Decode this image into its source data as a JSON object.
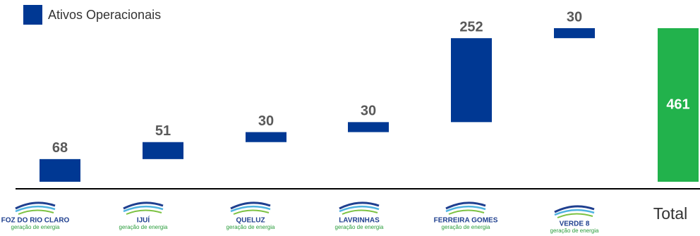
{
  "chart_data": {
    "type": "waterfall",
    "legend": "Ativos Operacionais",
    "categories": [
      "FOZ DO RIO CLARO",
      "IJUÍ",
      "QUELUZ",
      "LAVRINHAS",
      "FERREIRA GOMES",
      "VERDE 8",
      "Total"
    ],
    "category_sublabels": [
      "geração de energia",
      "geração de energia",
      "geração de energia",
      "geração de energia",
      "geração de energia",
      "geração de energia",
      null
    ],
    "values": [
      68,
      51,
      30,
      30,
      252,
      30,
      461
    ],
    "color": "#003893",
    "total_color": "#22b24c"
  }
}
